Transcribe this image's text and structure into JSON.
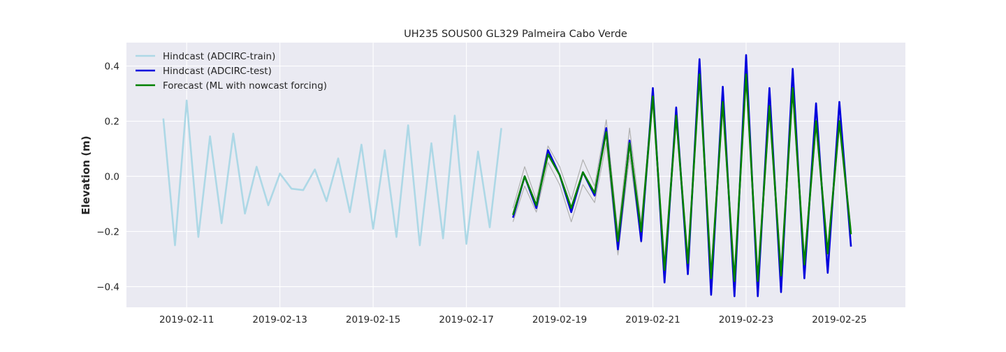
{
  "chart_data": {
    "type": "line",
    "title": "UH235 SOUS00 GL329 Palmeira Cabo Verde",
    "xlabel": "",
    "ylabel": "Elevation (m)",
    "x_axis_type": "date",
    "xlim": [
      "2019-02-09 17:00",
      "2019-02-26 10:00"
    ],
    "ylim": [
      -0.475,
      0.485
    ],
    "x_ticks": [
      "2019-02-11",
      "2019-02-13",
      "2019-02-15",
      "2019-02-17",
      "2019-02-19",
      "2019-02-21",
      "2019-02-23",
      "2019-02-25"
    ],
    "x_tick_labels": [
      "2019-02-11",
      "2019-02-13",
      "2019-02-15",
      "2019-02-17",
      "2019-02-19",
      "2019-02-21",
      "2019-02-23",
      "2019-02-25"
    ],
    "y_ticks": [
      -0.4,
      -0.2,
      0.0,
      0.2,
      0.4
    ],
    "y_tick_labels": [
      "−0.4",
      "−0.2",
      "0.0",
      "0.2",
      "0.4"
    ],
    "grid": true,
    "legend_position": "top-left",
    "background": "#eaeaf2",
    "series": [
      {
        "name": "Hindcast (ADCIRC-train)",
        "color": "#add8e6",
        "x": [
          "2019-02-10 12:00",
          "2019-02-10 18:00",
          "2019-02-11 00:00",
          "2019-02-11 06:00",
          "2019-02-11 12:00",
          "2019-02-11 18:00",
          "2019-02-12 00:00",
          "2019-02-12 06:00",
          "2019-02-12 12:00",
          "2019-02-12 18:00",
          "2019-02-13 00:00",
          "2019-02-13 06:00",
          "2019-02-13 12:00",
          "2019-02-13 18:00",
          "2019-02-14 00:00",
          "2019-02-14 06:00",
          "2019-02-14 12:00",
          "2019-02-14 18:00",
          "2019-02-15 00:00",
          "2019-02-15 06:00",
          "2019-02-15 12:00",
          "2019-02-15 18:00",
          "2019-02-16 00:00",
          "2019-02-16 06:00",
          "2019-02-16 12:00",
          "2019-02-16 18:00",
          "2019-02-17 00:00",
          "2019-02-17 06:00",
          "2019-02-17 12:00",
          "2019-02-17 18:00"
        ],
        "values": [
          0.21,
          -0.25,
          0.275,
          -0.22,
          0.145,
          -0.17,
          0.155,
          -0.135,
          0.035,
          -0.105,
          0.01,
          -0.045,
          -0.05,
          0.025,
          -0.09,
          0.065,
          -0.13,
          0.115,
          -0.19,
          0.095,
          -0.22,
          0.185,
          -0.25,
          0.12,
          -0.225,
          0.22,
          -0.245,
          0.09,
          -0.185,
          0.175
        ]
      },
      {
        "name": "Hindcast (ADCIRC-test)",
        "color": "#0000dd",
        "x": [
          "2019-02-18 00:00",
          "2019-02-18 06:00",
          "2019-02-18 12:00",
          "2019-02-18 18:00",
          "2019-02-19 00:00",
          "2019-02-19 06:00",
          "2019-02-19 12:00",
          "2019-02-19 18:00",
          "2019-02-20 00:00",
          "2019-02-20 06:00",
          "2019-02-20 12:00",
          "2019-02-20 18:00",
          "2019-02-21 00:00",
          "2019-02-21 06:00",
          "2019-02-21 12:00",
          "2019-02-21 18:00",
          "2019-02-22 00:00",
          "2019-02-22 06:00",
          "2019-02-22 12:00",
          "2019-02-22 18:00",
          "2019-02-23 00:00",
          "2019-02-23 06:00",
          "2019-02-23 12:00",
          "2019-02-23 18:00",
          "2019-02-24 00:00",
          "2019-02-24 06:00",
          "2019-02-24 12:00",
          "2019-02-24 18:00",
          "2019-02-25 00:00",
          "2019-02-25 06:00"
        ],
        "values": [
          -0.15,
          0.0,
          -0.115,
          0.095,
          0.005,
          -0.13,
          0.015,
          -0.07,
          0.175,
          -0.265,
          0.13,
          -0.235,
          0.32,
          -0.385,
          0.25,
          -0.355,
          0.425,
          -0.43,
          0.325,
          -0.435,
          0.44,
          -0.435,
          0.32,
          -0.42,
          0.39,
          -0.37,
          0.265,
          -0.35,
          0.27,
          -0.255
        ]
      },
      {
        "name": "Forecast (ML with nowcast forcing)",
        "color": "#008000",
        "x": [
          "2019-02-18 00:00",
          "2019-02-18 06:00",
          "2019-02-18 12:00",
          "2019-02-18 18:00",
          "2019-02-19 00:00",
          "2019-02-19 06:00",
          "2019-02-19 12:00",
          "2019-02-19 18:00",
          "2019-02-20 00:00",
          "2019-02-20 06:00",
          "2019-02-20 12:00",
          "2019-02-20 18:00",
          "2019-02-21 00:00",
          "2019-02-21 06:00",
          "2019-02-21 12:00",
          "2019-02-21 18:00",
          "2019-02-22 00:00",
          "2019-02-22 06:00",
          "2019-02-22 12:00",
          "2019-02-22 18:00",
          "2019-02-23 00:00",
          "2019-02-23 06:00",
          "2019-02-23 12:00",
          "2019-02-23 18:00",
          "2019-02-24 00:00",
          "2019-02-24 06:00",
          "2019-02-24 12:00",
          "2019-02-24 18:00",
          "2019-02-25 00:00",
          "2019-02-25 06:00"
        ],
        "values": [
          -0.14,
          0.0,
          -0.105,
          0.08,
          0.005,
          -0.115,
          0.015,
          -0.06,
          0.16,
          -0.235,
          0.12,
          -0.2,
          0.29,
          -0.34,
          0.22,
          -0.315,
          0.37,
          -0.37,
          0.27,
          -0.38,
          0.37,
          -0.38,
          0.255,
          -0.36,
          0.32,
          -0.32,
          0.2,
          -0.28,
          0.2,
          -0.21
        ]
      },
      {
        "color": "#b0b0b0",
        "x": [
          "2019-02-18 00:00",
          "2019-02-18 06:00",
          "2019-02-18 12:00",
          "2019-02-18 18:00",
          "2019-02-19 00:00",
          "2019-02-19 06:00",
          "2019-02-19 12:00",
          "2019-02-19 18:00",
          "2019-02-20 00:00",
          "2019-02-20 06:00",
          "2019-02-20 12:00",
          "2019-02-20 18:00",
          "2019-02-21 00:00",
          "2019-02-21 06:00",
          "2019-02-21 12:00",
          "2019-02-21 18:00",
          "2019-02-22 00:00",
          "2019-02-22 06:00",
          "2019-02-22 12:00",
          "2019-02-22 18:00",
          "2019-02-23 00:00",
          "2019-02-23 06:00",
          "2019-02-23 12:00",
          "2019-02-23 18:00",
          "2019-02-24 00:00",
          "2019-02-24 06:00",
          "2019-02-24 12:00",
          "2019-02-24 18:00",
          "2019-02-25 00:00",
          "2019-02-25 06:00"
        ],
        "values": [
          -0.115,
          0.035,
          -0.085,
          0.11,
          0.035,
          -0.085,
          0.06,
          -0.035,
          0.205,
          -0.205,
          0.175,
          -0.17,
          0.31,
          -0.31,
          0.24,
          -0.29,
          0.38,
          -0.345,
          0.29,
          -0.36,
          0.375,
          -0.36,
          0.27,
          -0.34,
          0.335,
          -0.3,
          0.215,
          -0.26,
          0.215,
          -0.19
        ]
      },
      {
        "color": "#b0b0b0",
        "x": [
          "2019-02-18 00:00",
          "2019-02-18 06:00",
          "2019-02-18 12:00",
          "2019-02-18 18:00",
          "2019-02-19 00:00",
          "2019-02-19 06:00",
          "2019-02-19 12:00",
          "2019-02-19 18:00",
          "2019-02-20 00:00",
          "2019-02-20 06:00",
          "2019-02-20 12:00",
          "2019-02-20 18:00",
          "2019-02-21 00:00",
          "2019-02-21 06:00",
          "2019-02-21 12:00",
          "2019-02-21 18:00",
          "2019-02-22 00:00",
          "2019-02-22 06:00",
          "2019-02-22 12:00",
          "2019-02-22 18:00",
          "2019-02-23 00:00",
          "2019-02-23 06:00",
          "2019-02-23 12:00",
          "2019-02-23 18:00",
          "2019-02-24 00:00",
          "2019-02-24 06:00",
          "2019-02-24 12:00",
          "2019-02-24 18:00",
          "2019-02-25 00:00",
          "2019-02-25 06:00"
        ],
        "values": [
          -0.165,
          -0.035,
          -0.13,
          0.05,
          -0.03,
          -0.165,
          -0.03,
          -0.095,
          0.12,
          -0.285,
          0.075,
          -0.24,
          0.27,
          -0.375,
          0.2,
          -0.345,
          0.355,
          -0.41,
          0.245,
          -0.41,
          0.35,
          -0.41,
          0.235,
          -0.39,
          0.3,
          -0.345,
          0.18,
          -0.305,
          0.18,
          -0.235
        ]
      }
    ]
  },
  "legend": {
    "items": [
      {
        "label": "Hindcast (ADCIRC-train)",
        "color": "#add8e6"
      },
      {
        "label": "Hindcast (ADCIRC-test)",
        "color": "#0000dd"
      },
      {
        "label": "Forecast (ML with nowcast forcing)",
        "color": "#008000"
      }
    ]
  }
}
